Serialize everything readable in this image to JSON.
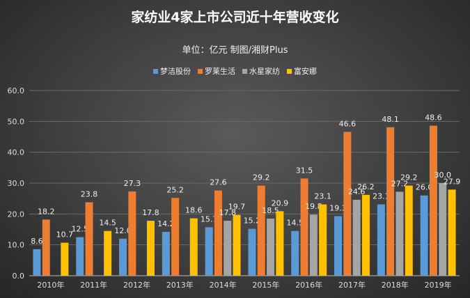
{
  "chart_data": {
    "type": "bar",
    "title": "家纺业4家上市公司近十年营收变化",
    "subtitle": "单位：亿元 制图/湘财Plus",
    "categories": [
      "2010年",
      "2011年",
      "2012年",
      "2013年",
      "2014年",
      "2015年",
      "2016年",
      "2017年",
      "2018年",
      "2019年"
    ],
    "series": [
      {
        "name": "梦洁股份",
        "color": "#5b9bd5",
        "values": [
          8.6,
          12.5,
          12.0,
          14.2,
          15.7,
          15.2,
          14.5,
          19.3,
          23.1,
          26.0
        ]
      },
      {
        "name": "罗莱生活",
        "color": "#ed7d31",
        "values": [
          18.2,
          23.8,
          27.3,
          25.2,
          27.6,
          29.2,
          31.5,
          46.6,
          48.1,
          48.6
        ]
      },
      {
        "name": "水星家纺",
        "color": "#a5a5a5",
        "values": [
          null,
          null,
          null,
          null,
          17.8,
          18.5,
          19.8,
          24.6,
          27.2,
          30.0
        ]
      },
      {
        "name": "富安娜",
        "color": "#ffc000",
        "values": [
          10.7,
          14.5,
          17.8,
          18.6,
          19.7,
          20.9,
          23.1,
          26.2,
          29.2,
          27.9
        ]
      }
    ],
    "ylim": [
      0,
      60
    ],
    "yticks": [
      "0.0",
      "10.0",
      "20.0",
      "30.0",
      "40.0",
      "50.0",
      "60.0"
    ],
    "grid": true,
    "legend": "top"
  }
}
